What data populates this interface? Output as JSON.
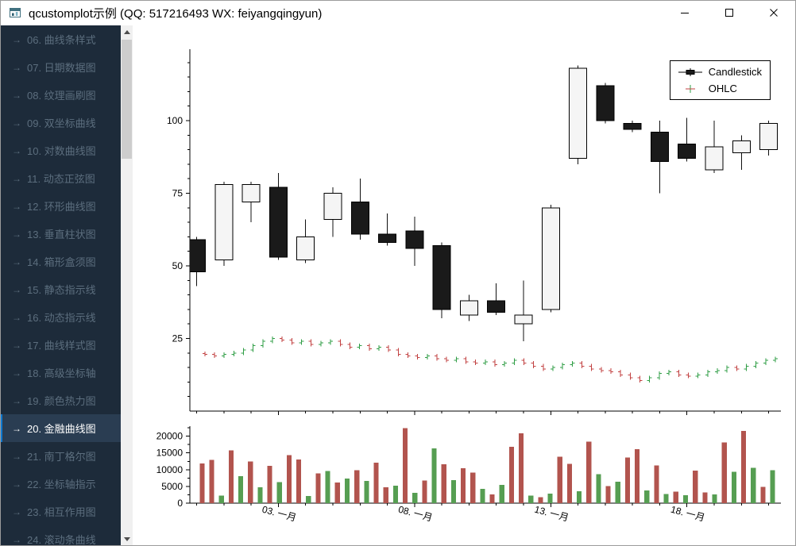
{
  "window": {
    "title": "qcustomplot示例 (QQ: 517216493 WX: feiyangqingyun)",
    "controls": [
      {
        "name": "minimize"
      },
      {
        "name": "maximize"
      },
      {
        "name": "close"
      }
    ]
  },
  "sidebar": {
    "arrow_icon": "→",
    "selected_index": 14,
    "colors": {
      "bg": "#1d2b3a",
      "text": "#5c6e7e",
      "selected_text": "#ffffff",
      "selected_bg": "#2a3d52",
      "accent": "#0f7ad1"
    },
    "items": [
      {
        "label": "06. 曲线条样式"
      },
      {
        "label": "07. 日期数据图"
      },
      {
        "label": "08. 纹理画刷图"
      },
      {
        "label": "09. 双坐标曲线"
      },
      {
        "label": "10. 对数曲线图"
      },
      {
        "label": "11. 动态正弦图"
      },
      {
        "label": "12. 环形曲线图"
      },
      {
        "label": "13. 垂直柱状图"
      },
      {
        "label": "14. 箱形盒须图"
      },
      {
        "label": "15. 静态指示线"
      },
      {
        "label": "16. 动态指示线"
      },
      {
        "label": "17. 曲线样式图"
      },
      {
        "label": "18. 高级坐标轴"
      },
      {
        "label": "19. 颜色热力图"
      },
      {
        "label": "20. 金融曲线图"
      },
      {
        "label": "21. 南丁格尔图"
      },
      {
        "label": "22. 坐标轴指示"
      },
      {
        "label": "23. 相互作用图"
      },
      {
        "label": "24. 滚动条曲线"
      }
    ]
  },
  "chart_data": [
    {
      "type": "candlestick",
      "title": "",
      "legend": [
        "Candlestick",
        "OHLC"
      ],
      "x_axis": {
        "range": [
          -0.25,
          21.45
        ],
        "tick_days": [
          3,
          8,
          13,
          18
        ],
        "tick_labels": [
          "03. 一月",
          "08. 一月",
          "13. 一月",
          "18. 一月"
        ],
        "label_rotation_deg": 15,
        "minor_step": 1
      },
      "y_axis": {
        "range": [
          0,
          124.6
        ],
        "ticks": [
          25,
          50,
          75,
          100
        ],
        "minor_step": 5
      },
      "series": [
        {
          "name": "Candlestick",
          "type": "candlestick",
          "x_start": 0,
          "x_step": 1,
          "body_halfwidth": 0.32,
          "up_fill": "#f5f5f5",
          "down_fill": "#1a1a1a",
          "stroke": "#000000",
          "points": [
            [
              59,
              60,
              43,
              48
            ],
            [
              52,
              79,
              50,
              78
            ],
            [
              72,
              79,
              65,
              78
            ],
            [
              77,
              82,
              52,
              53
            ],
            [
              52,
              66,
              51,
              60
            ],
            [
              66,
              77,
              60,
              75
            ],
            [
              72,
              80,
              59,
              61
            ],
            [
              61,
              68,
              57,
              58
            ],
            [
              62,
              67,
              50,
              56
            ],
            [
              57,
              58,
              32,
              35
            ],
            [
              33,
              40,
              31,
              38
            ],
            [
              38,
              44,
              33,
              34
            ],
            [
              30,
              45,
              24,
              33
            ],
            [
              35,
              71,
              34,
              70
            ],
            [
              87,
              119,
              85,
              118
            ],
            [
              112,
              113,
              99,
              100
            ],
            [
              99,
              100,
              96,
              97
            ],
            [
              96,
              100,
              75,
              86
            ],
            [
              92,
              101,
              86,
              87
            ],
            [
              83,
              100,
              82,
              91
            ],
            [
              89,
              95,
              83,
              93
            ],
            [
              90,
              100,
              88,
              99
            ]
          ]
        },
        {
          "name": "OHLC",
          "type": "ohlc",
          "x_start": 0.3,
          "x_step": 0.355,
          "up_color": "#2f9e45",
          "down_color": "#c24141",
          "points": [
            [
              19.8,
              20.5,
              18.8,
              19.5
            ],
            [
              19.5,
              20.2,
              18.3,
              19.0
            ],
            [
              19.0,
              20.2,
              18.3,
              19.5
            ],
            [
              19.5,
              20.7,
              18.8,
              20.0
            ],
            [
              20.0,
              21.7,
              19.3,
              21.0
            ],
            [
              21.0,
              23.2,
              20.3,
              22.5
            ],
            [
              22.5,
              24.7,
              21.8,
              24.0
            ],
            [
              24.0,
              25.7,
              23.3,
              25.0
            ],
            [
              25.0,
              25.7,
              23.8,
              24.5
            ],
            [
              24.5,
              25.2,
              22.8,
              23.5
            ],
            [
              23.5,
              24.7,
              22.8,
              24.0
            ],
            [
              24.0,
              24.7,
              22.3,
              23.0
            ],
            [
              23.0,
              24.2,
              22.3,
              23.5
            ],
            [
              23.5,
              24.7,
              22.8,
              24.0
            ],
            [
              24.0,
              24.7,
              22.3,
              23.0
            ],
            [
              23.0,
              23.7,
              21.3,
              22.0
            ],
            [
              22.0,
              23.2,
              21.3,
              22.5
            ],
            [
              22.5,
              23.2,
              20.8,
              21.5
            ],
            [
              21.5,
              22.7,
              20.8,
              22.0
            ],
            [
              22.0,
              22.7,
              20.3,
              21.0
            ],
            [
              21.0,
              21.7,
              18.8,
              19.5
            ],
            [
              19.5,
              20.2,
              18.3,
              19.0
            ],
            [
              19.0,
              19.7,
              17.8,
              18.5
            ],
            [
              18.5,
              19.7,
              17.8,
              19.0
            ],
            [
              19.0,
              19.7,
              17.3,
              18.0
            ],
            [
              18.0,
              18.7,
              16.8,
              17.5
            ],
            [
              17.5,
              18.7,
              16.8,
              18.0
            ],
            [
              18.0,
              18.7,
              16.3,
              17.0
            ],
            [
              17.0,
              17.7,
              15.8,
              16.5
            ],
            [
              16.5,
              17.7,
              15.8,
              17.0
            ],
            [
              17.0,
              17.7,
              15.3,
              16.0
            ],
            [
              16.0,
              17.2,
              15.3,
              16.5
            ],
            [
              16.5,
              18.2,
              15.8,
              17.5
            ],
            [
              17.5,
              18.2,
              15.8,
              16.5
            ],
            [
              16.5,
              17.2,
              14.8,
              15.5
            ],
            [
              15.5,
              16.2,
              13.8,
              14.5
            ],
            [
              14.5,
              15.7,
              13.8,
              15.0
            ],
            [
              15.0,
              16.7,
              14.3,
              16.0
            ],
            [
              16.0,
              17.2,
              15.3,
              16.5
            ],
            [
              16.5,
              17.2,
              14.8,
              15.5
            ],
            [
              15.5,
              16.2,
              13.8,
              14.5
            ],
            [
              14.5,
              15.2,
              13.3,
              14.0
            ],
            [
              14.0,
              14.7,
              12.8,
              13.5
            ],
            [
              13.5,
              14.2,
              11.8,
              12.5
            ],
            [
              12.5,
              13.2,
              10.8,
              11.5
            ],
            [
              11.5,
              12.2,
              9.8,
              10.5
            ],
            [
              10.5,
              12.2,
              9.8,
              11.5
            ],
            [
              11.5,
              13.7,
              10.8,
              13.0
            ],
            [
              13.0,
              14.2,
              12.3,
              13.5
            ],
            [
              13.5,
              14.2,
              11.8,
              12.5
            ],
            [
              12.5,
              13.2,
              11.3,
              12.0
            ],
            [
              12.0,
              13.2,
              11.3,
              12.5
            ],
            [
              12.5,
              14.2,
              11.8,
              13.5
            ],
            [
              13.5,
              14.7,
              12.8,
              14.0
            ],
            [
              14.0,
              15.7,
              13.3,
              15.0
            ],
            [
              15.0,
              15.7,
              13.8,
              14.5
            ],
            [
              14.5,
              16.2,
              13.8,
              15.5
            ],
            [
              15.5,
              17.2,
              14.8,
              16.5
            ],
            [
              16.5,
              18.2,
              15.8,
              17.5
            ],
            [
              17.5,
              18.7,
              16.8,
              18.0
            ]
          ]
        }
      ]
    },
    {
      "type": "bar",
      "name": "Volume",
      "y_axis": {
        "range": [
          0,
          23000
        ],
        "ticks": [
          0,
          5000,
          10000,
          15000,
          20000
        ],
        "minor_step": 2500
      },
      "bar_colors": {
        "r": "#b2544e",
        "g": "#569e52"
      },
      "x_start": 0.2,
      "x_step": 0.355,
      "bar_halfwidth": 0.09,
      "points": [
        [
          11800,
          "r"
        ],
        [
          12900,
          "r"
        ],
        [
          2300,
          "g"
        ],
        [
          15800,
          "r"
        ],
        [
          8100,
          "g"
        ],
        [
          12400,
          "r"
        ],
        [
          4800,
          "g"
        ],
        [
          11200,
          "r"
        ],
        [
          6300,
          "g"
        ],
        [
          14300,
          "r"
        ],
        [
          13100,
          "r"
        ],
        [
          2100,
          "g"
        ],
        [
          8900,
          "r"
        ],
        [
          9600,
          "g"
        ],
        [
          6200,
          "r"
        ],
        [
          7400,
          "g"
        ],
        [
          9800,
          "r"
        ],
        [
          6600,
          "g"
        ],
        [
          12100,
          "r"
        ],
        [
          4700,
          "r"
        ],
        [
          5200,
          "g"
        ],
        [
          22400,
          "r"
        ],
        [
          3100,
          "g"
        ],
        [
          6800,
          "r"
        ],
        [
          16400,
          "g"
        ],
        [
          11600,
          "r"
        ],
        [
          6900,
          "g"
        ],
        [
          10400,
          "r"
        ],
        [
          9100,
          "r"
        ],
        [
          4300,
          "g"
        ],
        [
          2600,
          "r"
        ],
        [
          5400,
          "g"
        ],
        [
          16800,
          "r"
        ],
        [
          20900,
          "r"
        ],
        [
          2200,
          "g"
        ],
        [
          1800,
          "r"
        ],
        [
          2900,
          "g"
        ],
        [
          13900,
          "r"
        ],
        [
          11700,
          "r"
        ],
        [
          3600,
          "g"
        ],
        [
          18400,
          "r"
        ],
        [
          8700,
          "g"
        ],
        [
          5100,
          "r"
        ],
        [
          6400,
          "g"
        ],
        [
          13600,
          "r"
        ],
        [
          16100,
          "r"
        ],
        [
          3800,
          "g"
        ],
        [
          11300,
          "r"
        ],
        [
          2700,
          "g"
        ],
        [
          3400,
          "r"
        ],
        [
          2400,
          "g"
        ],
        [
          9700,
          "r"
        ],
        [
          3200,
          "r"
        ],
        [
          2600,
          "g"
        ],
        [
          18100,
          "r"
        ],
        [
          9400,
          "g"
        ],
        [
          21600,
          "r"
        ],
        [
          10600,
          "g"
        ],
        [
          4900,
          "r"
        ],
        [
          9800,
          "g"
        ]
      ]
    }
  ]
}
